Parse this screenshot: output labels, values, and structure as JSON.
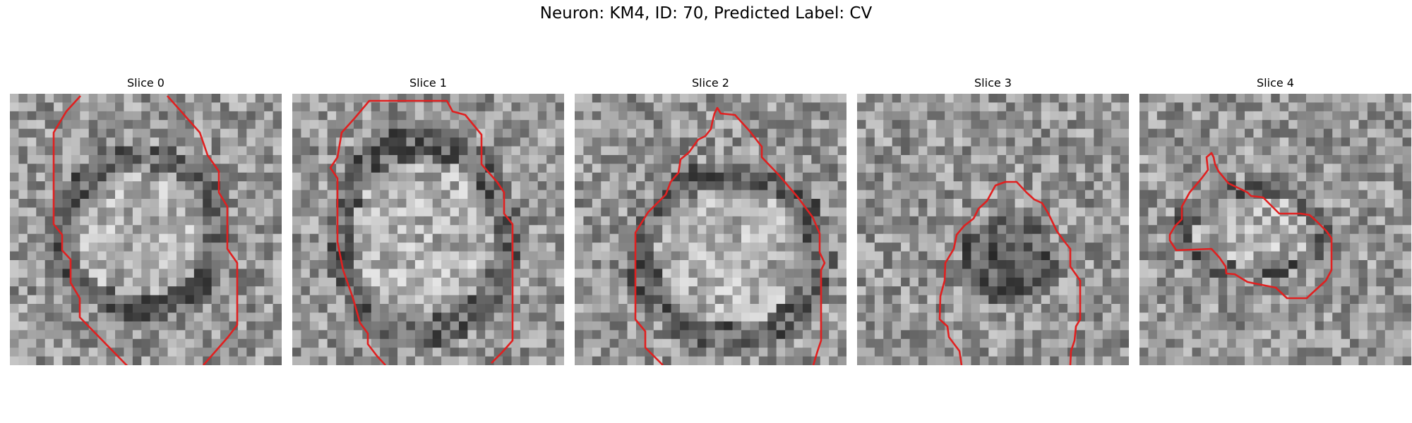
{
  "figure": {
    "title": "Neuron: KM4, ID: 70, Predicted Label: CV",
    "contour_color": "#e02020"
  },
  "panels": [
    {
      "title": "Slice 0",
      "image": "grayscale-noisy-patch",
      "overlay": "red-contour-line"
    },
    {
      "title": "Slice 1",
      "image": "grayscale-noisy-patch",
      "overlay": "red-contour-line"
    },
    {
      "title": "Slice 2",
      "image": "grayscale-noisy-patch",
      "overlay": "red-contour-line"
    },
    {
      "title": "Slice 3",
      "image": "grayscale-noisy-patch",
      "overlay": "red-contour-line"
    },
    {
      "title": "Slice 4",
      "image": "grayscale-noisy-patch",
      "overlay": "red-contour-line"
    }
  ]
}
